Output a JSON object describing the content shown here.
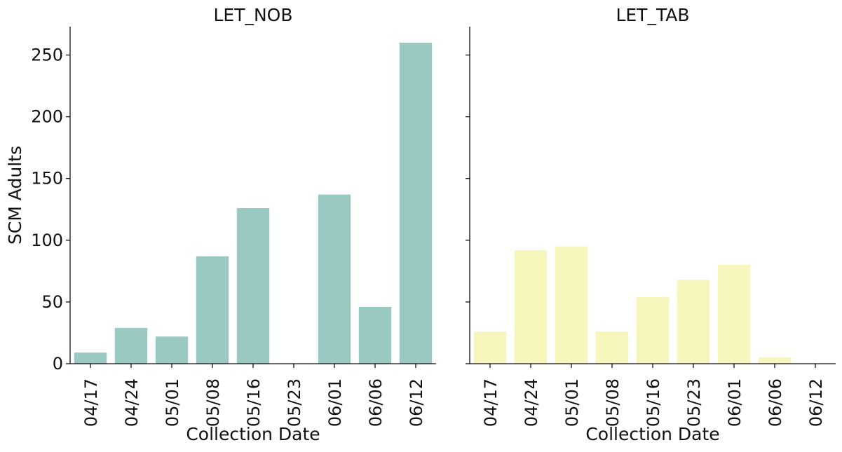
{
  "chart_data": {
    "type": "bar",
    "sharey": true,
    "ylabel": "SCM Adults",
    "ylim": [
      0,
      273
    ],
    "yticks": [
      0,
      50,
      100,
      150,
      200,
      250
    ],
    "grid": false,
    "panels": [
      {
        "title": "LET_NOB",
        "xlabel": "Collection Date",
        "color": "#99c9c1",
        "categories": [
          "04/17",
          "04/24",
          "05/01",
          "05/08",
          "05/16",
          "05/23",
          "06/01",
          "06/06",
          "06/12"
        ],
        "values": [
          9,
          29,
          22,
          87,
          126,
          0,
          137,
          46,
          260
        ]
      },
      {
        "title": "LET_TAB",
        "xlabel": "Collection Date",
        "color": "#f7f6bc",
        "categories": [
          "04/17",
          "04/24",
          "05/01",
          "05/08",
          "05/16",
          "05/23",
          "06/01",
          "06/06",
          "06/12"
        ],
        "values": [
          26,
          92,
          95,
          26,
          54,
          68,
          80,
          5,
          0
        ]
      }
    ]
  }
}
